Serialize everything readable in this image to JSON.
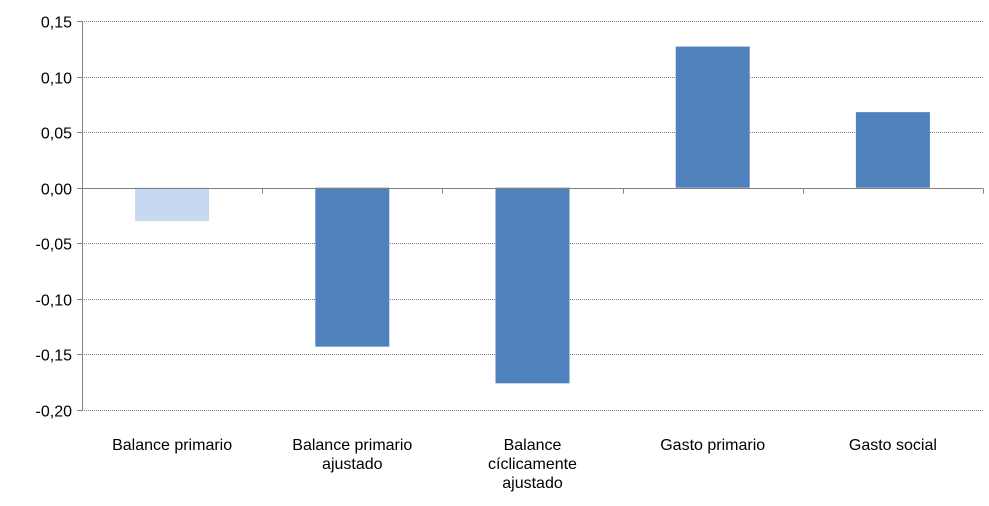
{
  "chart_data": {
    "type": "bar",
    "categories": [
      [
        "Balance primario"
      ],
      [
        "Balance primario",
        "ajustado"
      ],
      [
        "Balance",
        "cíclicamente",
        "ajustado"
      ],
      [
        "Gasto primario"
      ],
      [
        "Gasto social"
      ]
    ],
    "values": [
      -0.03,
      -0.143,
      -0.176,
      0.127,
      0.068
    ],
    "bar_colors": [
      "#c5d9f1",
      "#4f81bd",
      "#4f81bd",
      "#4f81bd",
      "#4f81bd"
    ],
    "ylim": [
      -0.2,
      0.15
    ],
    "yticks": [
      0.15,
      0.1,
      0.05,
      0.0,
      -0.05,
      -0.1,
      -0.15,
      -0.2
    ],
    "ytick_labels": [
      "0,15",
      "0,10",
      "0,05",
      "0,00",
      "-0,05",
      "-0,10",
      "-0,15",
      "-0,20"
    ],
    "grid": true,
    "title": "",
    "xlabel": "",
    "ylabel": ""
  }
}
